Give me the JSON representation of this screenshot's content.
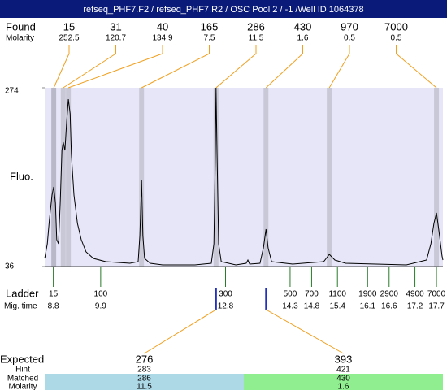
{
  "header": {
    "title": "refseq_PHF7.F2 / refseq_PHF7.R2 / OSC Pool 2 / -1 /Well ID 1064378"
  },
  "found": {
    "label": "Found",
    "molarity_label": "Molarity",
    "sizes": [
      15,
      31,
      40,
      165,
      286,
      430,
      970,
      7000
    ],
    "molarity": [
      252.5,
      120.7,
      134.9,
      7.5,
      11.5,
      1.6,
      0.5,
      0.5
    ]
  },
  "chart_data": {
    "type": "line",
    "ylabel": "Fluo.",
    "ylim": [
      36,
      274
    ],
    "yticks": [
      36,
      274
    ],
    "xlim": [
      8.6,
      17.85
    ],
    "peak_x": [
      8.81,
      9.03,
      9.15,
      10.85,
      12.58,
      13.74,
      15.21,
      17.7
    ],
    "x": [
      8.6,
      8.66,
      8.71,
      8.77,
      8.81,
      8.85,
      8.88,
      8.92,
      8.96,
      9.0,
      9.03,
      9.07,
      9.11,
      9.15,
      9.19,
      9.22,
      9.28,
      9.36,
      9.45,
      9.56,
      9.73,
      10.02,
      10.58,
      10.77,
      10.81,
      10.85,
      10.88,
      10.92,
      11.05,
      11.34,
      12.09,
      12.47,
      12.53,
      12.56,
      12.58,
      12.6,
      12.64,
      12.7,
      13.04,
      13.28,
      13.32,
      13.36,
      13.6,
      13.68,
      13.74,
      13.79,
      13.87,
      14.36,
      15.08,
      15.21,
      15.34,
      15.59,
      17.0,
      17.47,
      17.57,
      17.64,
      17.7,
      17.76,
      17.83,
      17.85
    ],
    "values": [
      46.8,
      66.3,
      98.7,
      131.2,
      142.0,
      120.4,
      71.7,
      66.3,
      120.4,
      190.7,
      201.5,
      190.7,
      228.6,
      258.9,
      239.4,
      185.3,
      131.2,
      93.3,
      71.7,
      55.5,
      46.8,
      42.5,
      40.3,
      42.5,
      77.1,
      150.7,
      77.1,
      46.8,
      40.3,
      38.2,
      38.2,
      40.3,
      66.3,
      174.5,
      274.0,
      196.1,
      66.3,
      42.5,
      38.2,
      40.3,
      44.7,
      39.2,
      40.3,
      60.9,
      85.8,
      60.9,
      42.5,
      39.2,
      42.5,
      52.2,
      44.7,
      40.3,
      38.2,
      44.7,
      66.3,
      93.3,
      107.4,
      82.5,
      50.1,
      44.7
    ],
    "color": "#000000"
  },
  "ladder": {
    "label": "Ladder",
    "time_label": "Mig. time",
    "sizes": [
      15,
      100,
      300,
      500,
      700,
      1100,
      1900,
      2900,
      4900,
      7000
    ],
    "times": [
      8.8,
      9.9,
      12.8,
      14.3,
      14.8,
      15.4,
      16.1,
      16.6,
      17.2,
      17.7
    ]
  },
  "expected": {
    "label": "Expected",
    "hint_label": "Hint",
    "matched_label": "Matched",
    "molarity_label": "Molarity",
    "expected": [
      276,
      393
    ],
    "hint": [
      283,
      421
    ],
    "matched": [
      286,
      430
    ],
    "molarity": [
      11.5,
      1.6
    ]
  }
}
